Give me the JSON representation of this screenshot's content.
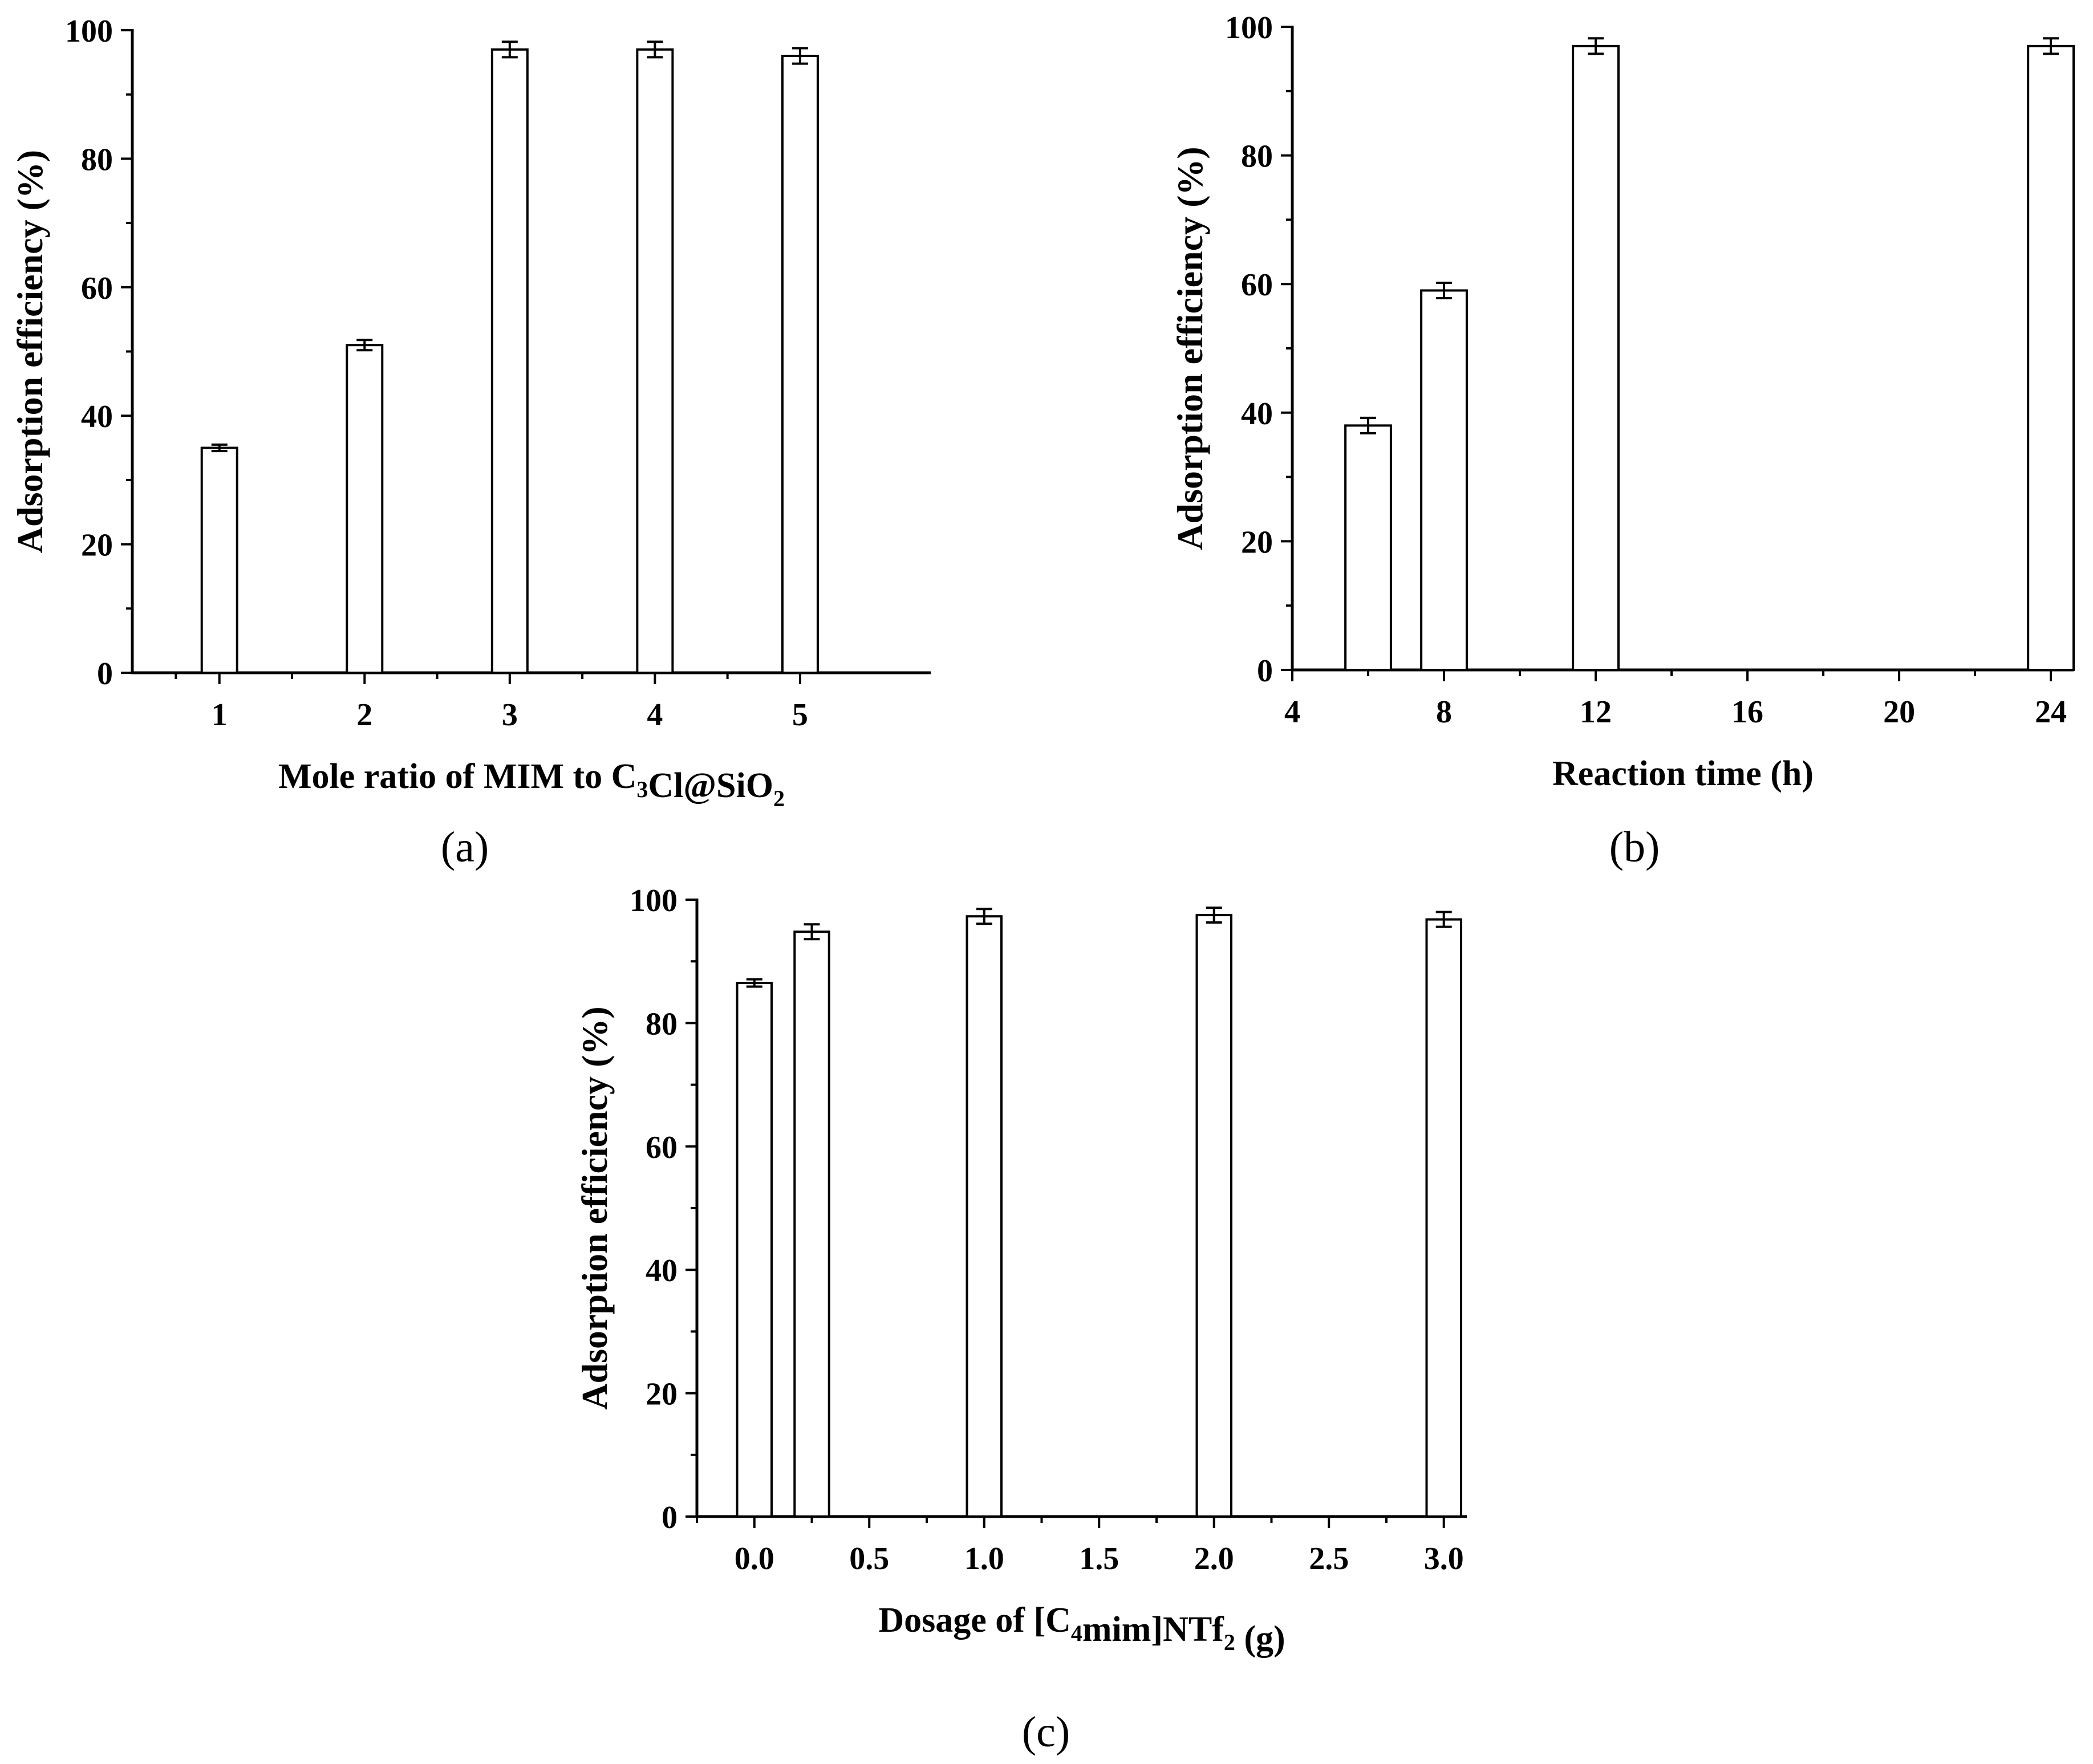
{
  "chart_data": [
    {
      "type": "bar",
      "panel_label": "(a)",
      "xlabel_parts": [
        {
          "text": "Mole ratio of MIM to C",
          "sub": false
        },
        {
          "text": "3",
          "sub": true
        },
        {
          "text": "Cl@SiO",
          "sub": false
        },
        {
          "text": "2",
          "sub": true
        }
      ],
      "ylabel": "Adsorption efficiency (%)",
      "x_axis_kind": "category",
      "categories": [
        "1",
        "2",
        "3",
        "4",
        "5"
      ],
      "values": [
        35,
        51,
        97,
        97,
        96
      ],
      "errors": [
        0.5,
        0.8,
        1.2,
        1.2,
        1.2
      ],
      "ylim": [
        0,
        100
      ],
      "yticks": [
        0,
        20,
        40,
        60,
        80,
        100
      ],
      "color": "#ffffff",
      "edge_color": "#000000"
    },
    {
      "type": "bar",
      "panel_label": "(b)",
      "xlabel_parts": [
        {
          "text": "Reaction time (h)",
          "sub": false
        }
      ],
      "ylabel": "Adsorption efficiency (%)",
      "x_axis_kind": "numeric",
      "x": [
        6,
        8,
        12,
        24
      ],
      "values": [
        38,
        59,
        97,
        97
      ],
      "errors": [
        1.2,
        1.2,
        1.2,
        1.2
      ],
      "bar_width": 1.2,
      "xlim": [
        4,
        24.6
      ],
      "xticks": [
        4,
        8,
        12,
        16,
        20,
        24
      ],
      "ylim": [
        0,
        100
      ],
      "yticks": [
        0,
        20,
        40,
        60,
        80,
        100
      ],
      "color": "#ffffff",
      "edge_color": "#000000"
    },
    {
      "type": "bar",
      "panel_label": "(c)",
      "xlabel_parts": [
        {
          "text": "Dosage of [C",
          "sub": false
        },
        {
          "text": "4",
          "sub": true
        },
        {
          "text": "mim]NTf",
          "sub": false
        },
        {
          "text": "2",
          "sub": true
        },
        {
          "text": " (g)",
          "sub": false
        }
      ],
      "ylabel": "Adsorption efficiency (%)",
      "x_axis_kind": "numeric",
      "x": [
        0,
        0.25,
        1,
        2,
        3
      ],
      "values": [
        86.5,
        94.8,
        97.3,
        97.5,
        96.8
      ],
      "errors": [
        0.6,
        1.2,
        1.2,
        1.2,
        1.2
      ],
      "bar_width": 0.15,
      "xlim": [
        -0.25,
        3.1
      ],
      "xticks": [
        "0.0",
        "0.5",
        "1.0",
        "1.5",
        "2.0",
        "2.5",
        "3.0"
      ],
      "ylim": [
        0,
        100
      ],
      "yticks": [
        0,
        20,
        40,
        60,
        80,
        100
      ],
      "color": "#ffffff",
      "edge_color": "#000000"
    }
  ]
}
